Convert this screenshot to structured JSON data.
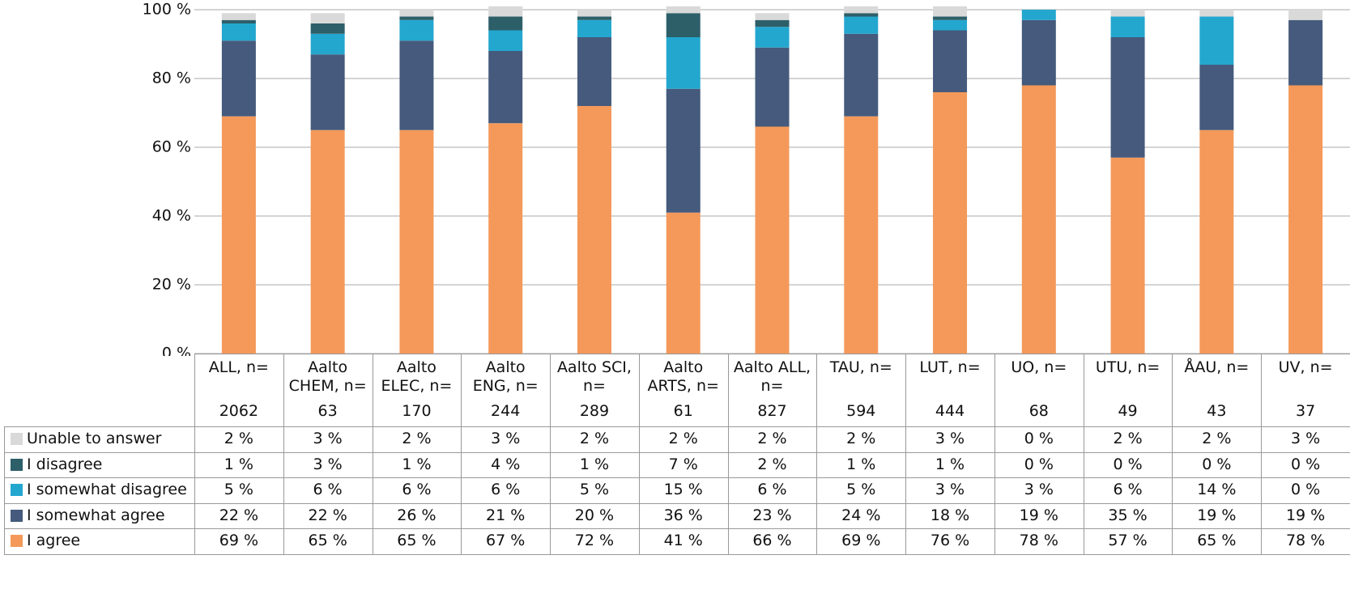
{
  "chart_data": {
    "type": "stacked_bar",
    "categories": [
      "ALL, n=",
      "Aalto CHEM, n=",
      "Aalto ELEC, n=",
      "Aalto ENG, n=",
      "Aalto SCI, n=",
      "Aalto ARTS, n=",
      "Aalto ALL, n=",
      "TAU, n=",
      "LUT, n=",
      "UO, n=",
      "UTU, n=",
      "ÅAU, n=",
      "UV, n="
    ],
    "n": [
      2062,
      63,
      170,
      244,
      289,
      61,
      827,
      594,
      444,
      68,
      49,
      43,
      37
    ],
    "ylim": [
      0,
      100
    ],
    "yticks": [
      {
        "value": 0,
        "label": "0 %"
      },
      {
        "value": 20,
        "label": "20 %"
      },
      {
        "value": 40,
        "label": "40 %"
      },
      {
        "value": 60,
        "label": "60 %"
      },
      {
        "value": 80,
        "label": "80 %"
      },
      {
        "value": 100,
        "label": "100 %"
      }
    ],
    "grid": true,
    "series": [
      {
        "name": "Unable to answer",
        "color": "#d9d9d9",
        "values": [
          2,
          3,
          2,
          3,
          2,
          2,
          2,
          2,
          3,
          0,
          2,
          2,
          3
        ],
        "value_labels": [
          "2 %",
          "3 %",
          "2 %",
          "3 %",
          "2 %",
          "2 %",
          "2 %",
          "2 %",
          "3 %",
          "0 %",
          "2 %",
          "2 %",
          "3 %"
        ]
      },
      {
        "name": "I disagree",
        "color": "#2d5f69",
        "values": [
          1,
          3,
          1,
          4,
          1,
          7,
          2,
          1,
          1,
          0,
          0,
          0,
          0
        ],
        "value_labels": [
          "1 %",
          "3 %",
          "1 %",
          "4 %",
          "1 %",
          "7 %",
          "2 %",
          "1 %",
          "1 %",
          "0 %",
          "0 %",
          "0 %",
          "0 %"
        ]
      },
      {
        "name": "I somewhat disagree",
        "color": "#23a7cf",
        "values": [
          5,
          6,
          6,
          6,
          5,
          15,
          6,
          5,
          3,
          3,
          6,
          14,
          0
        ],
        "value_labels": [
          "5 %",
          "6 %",
          "6 %",
          "6 %",
          "5 %",
          "15 %",
          "6 %",
          "5 %",
          "3 %",
          "3 %",
          "6 %",
          "14 %",
          "0 %"
        ]
      },
      {
        "name": "I somewhat agree",
        "color": "#455a7c",
        "values": [
          22,
          22,
          26,
          21,
          20,
          36,
          23,
          24,
          18,
          19,
          35,
          19,
          19
        ],
        "value_labels": [
          "22 %",
          "22 %",
          "26 %",
          "21 %",
          "20 %",
          "36 %",
          "23 %",
          "24 %",
          "18 %",
          "19 %",
          "35 %",
          "19 %",
          "19 %"
        ]
      },
      {
        "name": "I agree",
        "color": "#f4995a",
        "values": [
          69,
          65,
          65,
          67,
          72,
          41,
          66,
          69,
          76,
          78,
          57,
          65,
          78
        ],
        "value_labels": [
          "69 %",
          "65 %",
          "65 %",
          "67 %",
          "72 %",
          "41 %",
          "66 %",
          "69 %",
          "76 %",
          "78 %",
          "57 %",
          "65 %",
          "78 %"
        ]
      }
    ]
  }
}
